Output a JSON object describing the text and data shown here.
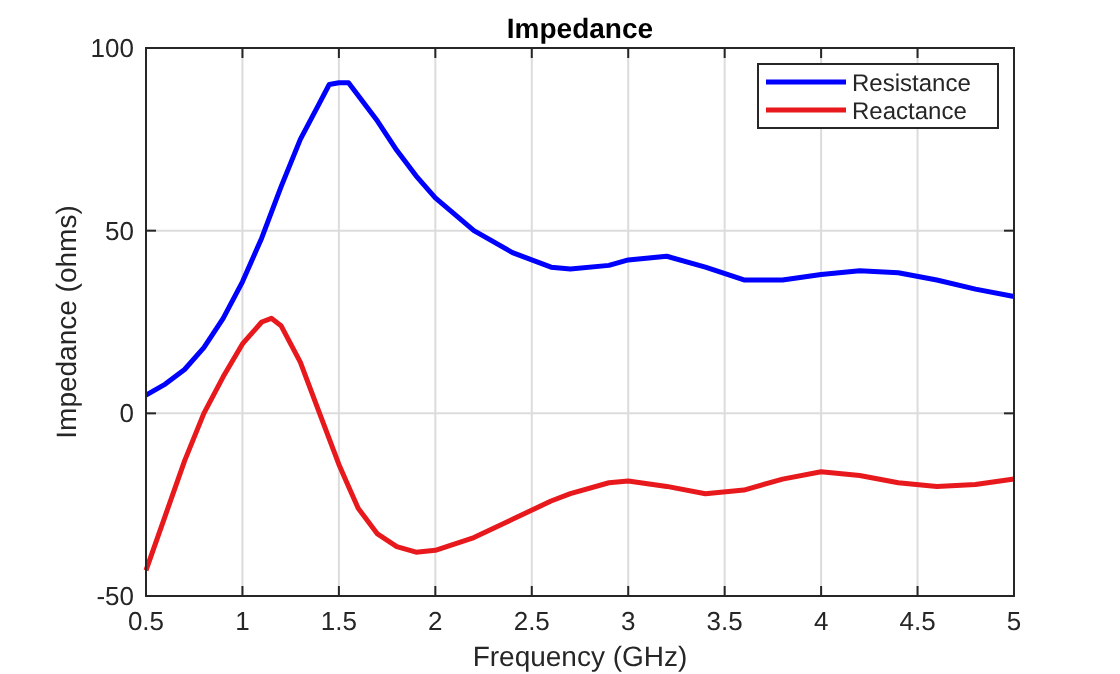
{
  "chart_data": {
    "type": "line",
    "title": "Impedance",
    "xlabel": "Frequency (GHz)",
    "ylabel": "Impedance (ohms)",
    "x": [
      0.5,
      0.6,
      0.7,
      0.8,
      0.9,
      1.0,
      1.1,
      1.15,
      1.2,
      1.3,
      1.4,
      1.45,
      1.5,
      1.55,
      1.6,
      1.7,
      1.8,
      1.9,
      2.0,
      2.2,
      2.4,
      2.6,
      2.7,
      2.9,
      3.0,
      3.2,
      3.4,
      3.6,
      3.8,
      4.0,
      4.2,
      4.4,
      4.6,
      4.8,
      5.0
    ],
    "series": [
      {
        "name": "Resistance",
        "color": "#0000ff",
        "values": [
          5,
          8,
          12,
          18,
          26,
          36,
          48,
          55,
          62,
          75,
          85,
          90,
          90.5,
          90.5,
          87,
          80,
          72,
          65,
          59,
          50,
          44,
          40,
          39.5,
          40.5,
          42,
          43,
          40,
          36.5,
          36.5,
          38,
          39,
          38.5,
          36.5,
          34,
          32
        ]
      },
      {
        "name": "Reactance",
        "color": "#e8191c",
        "values": [
          -43,
          -28,
          -13,
          0,
          10,
          19,
          25,
          26,
          24,
          14,
          0,
          -7,
          -14,
          -20,
          -26,
          -33,
          -36.5,
          -38,
          -37.5,
          -34,
          -29,
          -24,
          -22,
          -19,
          -18.5,
          -20,
          -22,
          -21,
          -18,
          -16,
          -17,
          -19,
          -20,
          -19.5,
          -18
        ]
      }
    ],
    "xlim": [
      0.5,
      5
    ],
    "xticks": [
      0.5,
      1,
      1.5,
      2,
      2.5,
      3,
      3.5,
      4,
      4.5,
      5
    ],
    "ylim": [
      -50,
      100
    ],
    "yticks": [
      -50,
      0,
      50,
      100
    ],
    "grid": true,
    "legend": "top right",
    "line_style": "solid",
    "marker": "none"
  }
}
